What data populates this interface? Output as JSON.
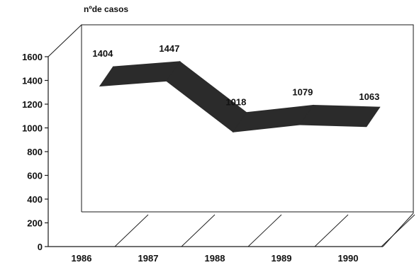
{
  "chart_data": {
    "type": "line",
    "title": "",
    "xlabel": "",
    "ylabel": "nºde casos",
    "categories": [
      "1986",
      "1987",
      "1988",
      "1989",
      "1990"
    ],
    "series": [
      {
        "values": [
          1404,
          1447,
          1018,
          1079,
          1063
        ]
      }
    ],
    "data_labels": [
      "1404",
      "1447",
      "1018",
      "1079",
      "1063"
    ],
    "y_ticks": [
      "0",
      "200",
      "400",
      "600",
      "800",
      "1000",
      "1200",
      "1400",
      "1600"
    ],
    "ylim": [
      0,
      1600
    ],
    "grid": false,
    "legend": "none",
    "style": "3d-ribbon",
    "colors": {
      "ribbon": "#2b2b2b",
      "axis": "#1a1a1a",
      "background": "#ffffff"
    }
  }
}
